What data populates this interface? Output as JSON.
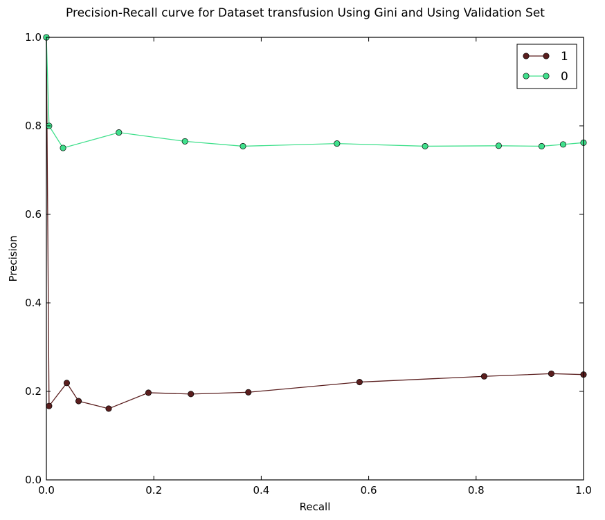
{
  "chart_data": {
    "type": "line",
    "title": "Precision-Recall curve for Dataset transfusion Using Gini and Using Validation Set",
    "xlabel": "Recall",
    "ylabel": "Precision",
    "xlim": [
      0.0,
      1.0
    ],
    "ylim": [
      0.0,
      1.0
    ],
    "xticks": [
      "0.0",
      "0.2",
      "0.4",
      "0.6",
      "0.8",
      "1.0"
    ],
    "yticks": [
      "0.0",
      "0.2",
      "0.4",
      "0.6",
      "0.8",
      "1.0"
    ],
    "grid": false,
    "legend": "top-right",
    "series": [
      {
        "name": "1",
        "color": "#5a1e1e",
        "x": [
          0.0,
          0.005,
          0.038,
          0.06,
          0.116,
          0.19,
          0.269,
          0.376,
          0.583,
          0.815,
          0.94,
          1.0
        ],
        "y": [
          1.0,
          0.167,
          0.219,
          0.178,
          0.161,
          0.197,
          0.194,
          0.198,
          0.221,
          0.234,
          0.24,
          0.238
        ]
      },
      {
        "name": "0",
        "color": "#40e08c",
        "x": [
          0.0,
          0.005,
          0.031,
          0.135,
          0.258,
          0.366,
          0.541,
          0.705,
          0.842,
          0.922,
          0.962,
          1.0
        ],
        "y": [
          1.0,
          0.8,
          0.75,
          0.785,
          0.765,
          0.754,
          0.76,
          0.754,
          0.755,
          0.754,
          0.758,
          0.762
        ]
      }
    ]
  }
}
